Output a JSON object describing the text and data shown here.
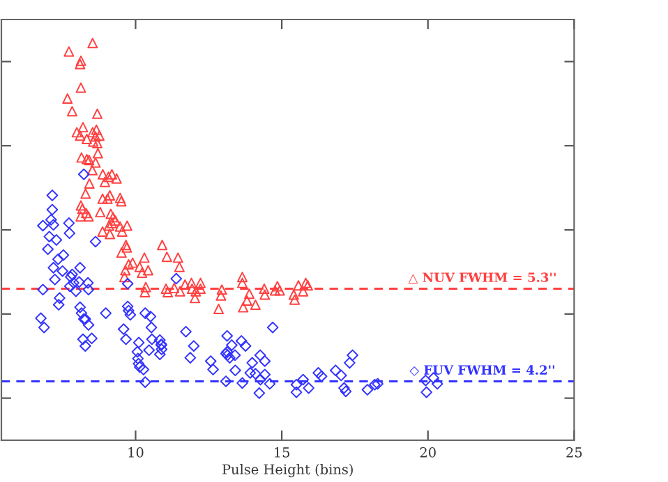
{
  "chart_data": {
    "type": "scatter",
    "xlabel": "Pulse Height (bins)",
    "xlim": [
      5.41,
      25
    ],
    "xticks": [
      10,
      15,
      20,
      25
    ],
    "ylim": [
      3.5,
      8.5
    ],
    "yticks": [
      {
        "value": 4,
        "label": null
      },
      {
        "value": 5,
        "label": null
      },
      {
        "value": 6,
        "label": null
      },
      {
        "value": 7,
        "label": null
      },
      {
        "value": 8,
        "label": null
      }
    ],
    "grid": false,
    "series": [
      {
        "color": "#ff4040",
        "marker": "triangle",
        "x": [
          7.72,
          8.53,
          8.1,
          8.13,
          7.67,
          8.13,
          7.83,
          8.69,
          7.99,
          8.2,
          8.1,
          8.66,
          8.53,
          8.63,
          8.33,
          8.76,
          8.55,
          8.69,
          8.71,
          8.15,
          8.33,
          8.41,
          8.63,
          8.52,
          8.88,
          8.95,
          9.07,
          9.19,
          9.35,
          8.42,
          8.29,
          8.13,
          8.18,
          8.12,
          8.31,
          8.39,
          8.79,
          8.87,
          9.04,
          9.12,
          9.47,
          9.51,
          9.15,
          9.23,
          9.31,
          9.09,
          9.19,
          8.87,
          9.12,
          9.47,
          9.54,
          9.71,
          9.7,
          9.67,
          9.52,
          9.9,
          9.76,
          9.65,
          9.62,
          10.3,
          10.14,
          10.43,
          10.22,
          10.35,
          10.32,
          10.91,
          11.07,
          11.45,
          11.5,
          11.04,
          11.1,
          11.32,
          11.52,
          11.69,
          11.91,
          11.93,
          12.06,
          12.22,
          12.22,
          12.03,
          12.95,
          12.92,
          12.84,
          13.65,
          13.65,
          13.89,
          13.81,
          13.68,
          14.1,
          14.4,
          14.42,
          14.85,
          14.93,
          14.77,
          15.41,
          15.44,
          15.57,
          15.73,
          15.82,
          15.89
        ],
        "values": [
          8.12,
          8.22,
          7.97,
          8.01,
          7.56,
          7.69,
          7.41,
          7.38,
          7.16,
          7.22,
          7.12,
          7.19,
          7.16,
          7.11,
          7.08,
          7.12,
          7.05,
          7.03,
          6.91,
          6.86,
          6.84,
          6.83,
          6.8,
          6.71,
          6.66,
          6.57,
          6.63,
          6.66,
          6.61,
          6.55,
          6.43,
          6.29,
          6.25,
          6.16,
          6.2,
          6.16,
          6.21,
          6.37,
          6.37,
          6.41,
          6.38,
          6.34,
          6.19,
          6.15,
          6.11,
          6.05,
          6.08,
          5.98,
          5.95,
          6.04,
          5.98,
          6.05,
          5.79,
          5.82,
          5.73,
          5.61,
          5.59,
          5.52,
          5.44,
          5.67,
          5.56,
          5.52,
          5.49,
          5.32,
          5.26,
          5.82,
          5.68,
          5.67,
          5.56,
          5.3,
          5.26,
          5.31,
          5.27,
          5.35,
          5.37,
          5.3,
          5.27,
          5.37,
          5.3,
          5.19,
          5.29,
          5.22,
          5.06,
          5.44,
          5.37,
          5.24,
          5.16,
          5.08,
          5.11,
          5.3,
          5.23,
          5.33,
          5.28,
          5.28,
          5.23,
          5.17,
          5.34,
          5.27,
          5.37,
          5.34
        ]
      },
      {
        "color": "#3333ff",
        "marker": "diamond",
        "x": [
          6.83,
          6.83,
          6.76,
          6.87,
          7.05,
          7.0,
          7.15,
          7.15,
          7.11,
          7.19,
          7.29,
          7.19,
          7.24,
          7.35,
          7.53,
          7.5,
          7.4,
          7.37,
          7.72,
          7.74,
          7.78,
          7.83,
          7.88,
          7.75,
          7.96,
          8.1,
          8.07,
          8.37,
          8.39,
          8.23,
          8.1,
          8.15,
          8.23,
          8.28,
          8.39,
          8.2,
          8.28,
          8.5,
          8.63,
          8.98,
          9.73,
          9.73,
          9.82,
          9.76,
          9.59,
          9.67,
          10.11,
          10.06,
          10.08,
          10.1,
          10.14,
          10.27,
          10.33,
          10.33,
          10.46,
          10.51,
          10.54,
          10.56,
          10.83,
          10.88,
          10.88,
          10.83,
          10.89,
          11.39,
          11.72,
          11.99,
          11.87,
          12.57,
          12.65,
          13.13,
          13.09,
          13.13,
          13.14,
          13.22,
          13.29,
          13.4,
          13.41,
          13.09,
          13.62,
          13.76,
          13.65,
          13.99,
          13.92,
          14.1,
          14.26,
          14.27,
          14.23,
          14.42,
          14.42,
          14.59,
          14.69,
          15.5,
          15.5,
          15.73,
          15.92,
          16.25,
          16.36,
          16.84,
          17.03,
          17.13,
          17.19,
          17.32,
          17.42,
          17.93,
          18.18,
          18.28,
          19.92,
          19.95,
          20.19,
          20.32
        ],
        "values": [
          6.05,
          5.29,
          4.95,
          4.84,
          5.92,
          5.77,
          6.41,
          6.24,
          6.12,
          6.06,
          5.88,
          5.55,
          5.41,
          5.65,
          5.7,
          5.51,
          5.19,
          5.11,
          6.08,
          5.96,
          5.44,
          5.47,
          5.37,
          5.33,
          5.27,
          5.55,
          5.38,
          5.37,
          5.29,
          6.66,
          5.08,
          5.01,
          4.94,
          4.94,
          4.87,
          4.7,
          4.62,
          4.71,
          5.86,
          5.01,
          5.36,
          5.09,
          4.99,
          5.04,
          4.82,
          4.7,
          4.66,
          4.55,
          4.47,
          4.41,
          4.37,
          4.34,
          4.19,
          5.01,
          4.57,
          4.97,
          4.84,
          4.7,
          4.69,
          4.64,
          4.63,
          4.52,
          4.58,
          5.42,
          4.79,
          4.62,
          4.48,
          4.44,
          4.34,
          4.74,
          4.53,
          4.55,
          4.51,
          4.48,
          4.63,
          4.51,
          4.33,
          4.2,
          4.68,
          4.62,
          4.18,
          4.42,
          4.3,
          4.29,
          4.51,
          4.22,
          4.06,
          4.44,
          4.28,
          4.17,
          4.84,
          4.16,
          4.07,
          4.22,
          4.12,
          4.3,
          4.26,
          4.33,
          4.27,
          4.12,
          4.08,
          4.42,
          4.51,
          4.1,
          4.16,
          4.17,
          4.21,
          4.07,
          4.24,
          4.17
        ]
      }
    ],
    "ref_lines": [
      {
        "axis": "y",
        "value": 5.3,
        "label": "△ NUV FWHM = 5.3''",
        "color": "#ff4040",
        "line_style": "dashed"
      },
      {
        "axis": "y",
        "value": 4.2,
        "label": "◇ FUV FWHM = 4.2''",
        "color": "#3333ff",
        "line_style": "dashed"
      }
    ]
  }
}
